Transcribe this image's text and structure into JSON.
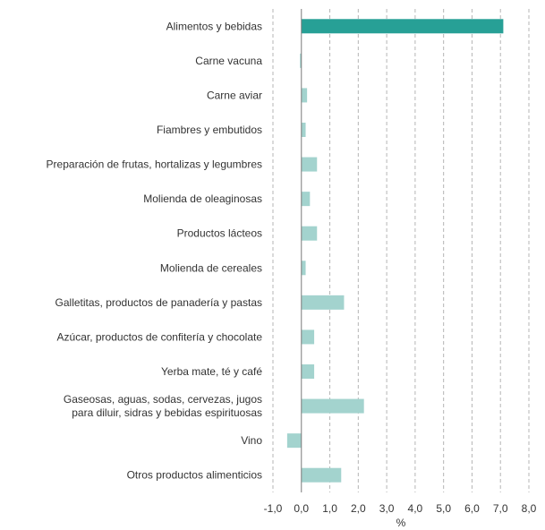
{
  "chart_data": {
    "type": "bar",
    "orientation": "horizontal",
    "xlabel": "%",
    "xlim": [
      -1.0,
      8.0
    ],
    "xticks": [
      "-1,0",
      "0,0",
      "1,0",
      "2,0",
      "3,0",
      "4,0",
      "5,0",
      "6,0",
      "7,0",
      "8,0"
    ],
    "grid": "vertical dashed",
    "categories": [
      "Alimentos y bebidas",
      "Carne vacuna",
      "Carne aviar",
      "Fiambres y embutidos",
      "Preparación de frutas, hortalizas y legumbres",
      "Molienda de oleaginosas",
      "Productos lácteos",
      "Molienda de cereales",
      "Galletitas, productos de panadería y pastas",
      "Azúcar, productos de confitería y chocolate",
      "Yerba mate, té y café",
      "Gaseosas, aguas, sodas, cervezas, jugos|para diluir, sidras y bebidas espirituosas",
      "Vino",
      "Otros productos alimenticios"
    ],
    "values": [
      7.1,
      -0.05,
      0.2,
      0.15,
      0.55,
      0.3,
      0.55,
      0.15,
      1.5,
      0.45,
      0.45,
      2.2,
      -0.5,
      1.4
    ],
    "colors": {
      "highlight": "#27a096",
      "default": "#a3d3ce",
      "grid": "#b5b5b5",
      "axis": "#7a7a7a"
    }
  }
}
